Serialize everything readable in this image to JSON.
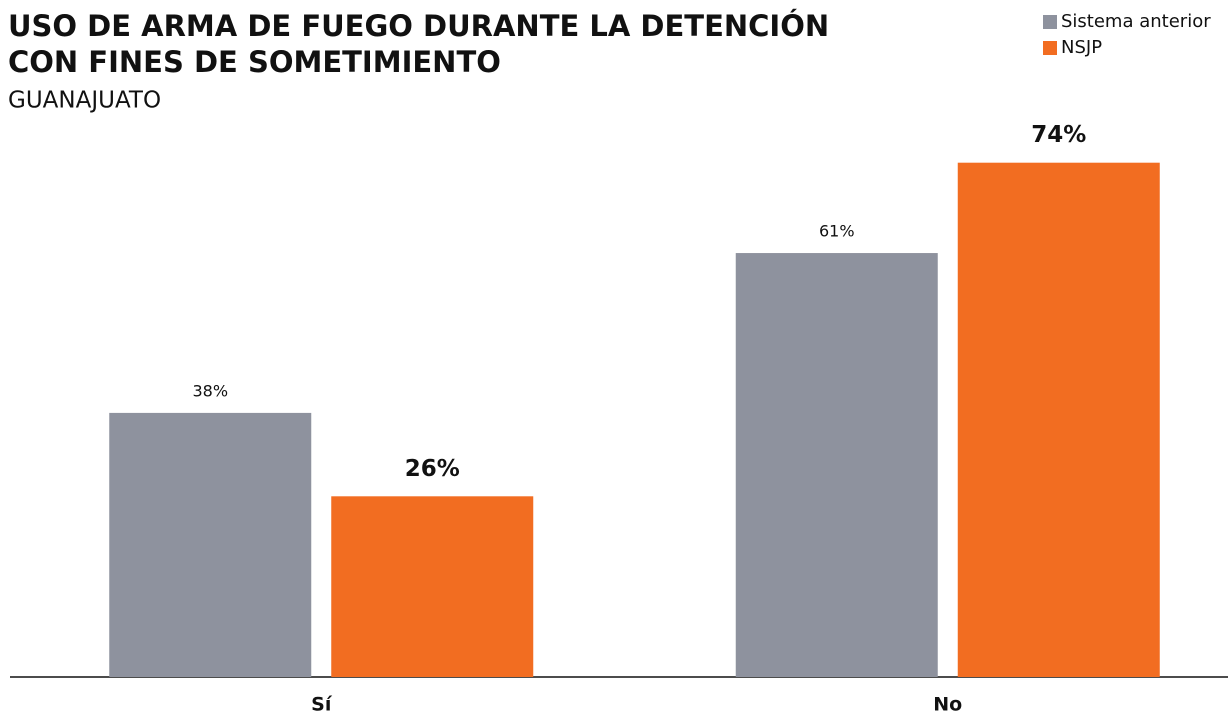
{
  "chart_data": {
    "type": "bar",
    "title": [
      "USO DE ARMA DE FUEGO DURANTE LA DETENCIÓN",
      "CON FINES DE SOMETIMIENTO"
    ],
    "subtitle": "GUANAJUATO",
    "categories": [
      "Sí",
      "No"
    ],
    "series": [
      {
        "name": "Sistema anterior",
        "color": "#8e929e",
        "values": [
          38,
          61
        ],
        "value_labels": [
          "38%",
          "61%"
        ]
      },
      {
        "name": "NSJP",
        "color": "#f26d21",
        "values": [
          26,
          74
        ],
        "value_labels": [
          "26%",
          "74%"
        ]
      }
    ],
    "legend": "top-right"
  }
}
